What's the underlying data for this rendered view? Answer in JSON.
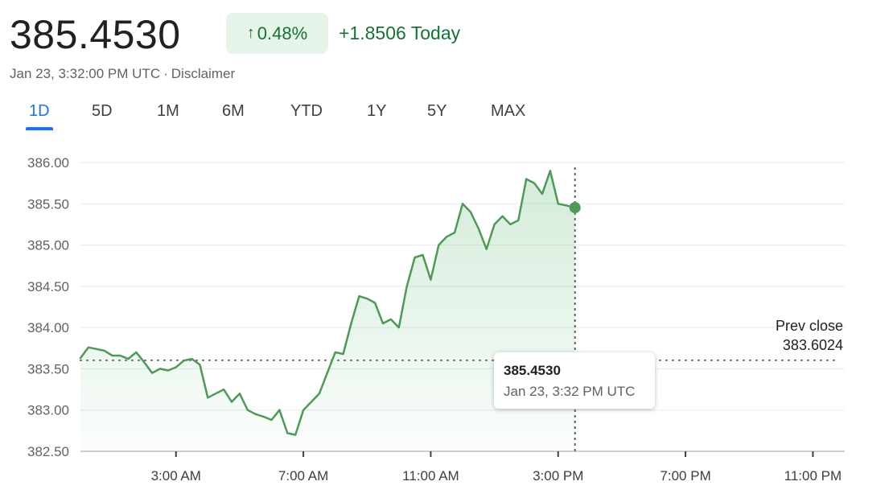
{
  "quote": {
    "price": "385.4530",
    "change_percent": "0.48%",
    "change_arrow": "↑",
    "change_today": "+1.8506 Today",
    "timestamp": "Jan 23, 3:32:00 PM UTC",
    "separator": "·",
    "disclaimer": "Disclaimer"
  },
  "tabs": [
    {
      "label": "1D",
      "active": true
    },
    {
      "label": "5D"
    },
    {
      "label": "1M"
    },
    {
      "label": "6M"
    },
    {
      "label": "YTD"
    },
    {
      "label": "1Y"
    },
    {
      "label": "5Y"
    },
    {
      "label": "MAX"
    }
  ],
  "tooltip": {
    "price": "385.4530",
    "time": "Jan 23, 3:32 PM UTC"
  },
  "prev_close": {
    "label": "Prev close",
    "value": "383.6024"
  },
  "colors": {
    "up": "#137333",
    "line": "#4d9a55",
    "badge_bg": "#e6f4ea",
    "active_tab": "#1a73e8"
  },
  "chart_data": {
    "type": "line",
    "title": "",
    "xlabel": "",
    "ylabel": "",
    "x_unit": "hours since 12:00 AM",
    "xlim": [
      0,
      24
    ],
    "ylim": [
      382.5,
      386.0
    ],
    "y_ticks": [
      "386.00",
      "385.50",
      "385.00",
      "384.50",
      "384.00",
      "383.50",
      "383.00",
      "382.50"
    ],
    "y_tick_values": [
      386.0,
      385.5,
      385.0,
      384.5,
      384.0,
      383.5,
      383.0,
      382.5
    ],
    "x_ticks": [
      "3:00 AM",
      "7:00 AM",
      "11:00 AM",
      "3:00 PM",
      "7:00 PM",
      "11:00 PM"
    ],
    "x_tick_values": [
      3,
      7,
      11,
      15,
      19,
      23
    ],
    "prev_close": 383.6024,
    "last_point": {
      "x": 15.53,
      "y": 385.453
    },
    "grid": true,
    "series": [
      {
        "x": [
          0,
          0.25,
          0.5,
          0.75,
          1.0,
          1.25,
          1.5,
          1.75,
          2.0,
          2.25,
          2.5,
          2.75,
          3.0,
          3.25,
          3.5,
          3.75,
          4.0,
          4.25,
          4.5,
          4.75,
          5.0,
          5.25,
          5.5,
          5.75,
          6.0,
          6.25,
          6.5,
          6.75,
          7.0,
          7.25,
          7.5,
          7.75,
          8.0,
          8.25,
          8.5,
          8.75,
          9.0,
          9.25,
          9.5,
          9.75,
          10.0,
          10.25,
          10.5,
          10.75,
          11.0,
          11.25,
          11.5,
          11.75,
          12.0,
          12.25,
          12.5,
          12.75,
          13.0,
          13.25,
          13.5,
          13.75,
          14.0,
          14.25,
          14.5,
          14.75,
          15.0,
          15.25,
          15.53
        ],
        "values": [
          383.63,
          383.76,
          383.74,
          383.72,
          383.66,
          383.66,
          383.62,
          383.7,
          383.58,
          383.45,
          383.5,
          383.48,
          383.52,
          383.6,
          383.62,
          383.55,
          383.15,
          383.2,
          383.25,
          383.1,
          383.2,
          383.0,
          382.95,
          382.92,
          382.88,
          383.0,
          382.72,
          382.7,
          383.0,
          383.1,
          383.2,
          383.45,
          383.7,
          383.68,
          384.05,
          384.38,
          384.35,
          384.3,
          384.05,
          384.1,
          384.0,
          384.5,
          384.85,
          384.88,
          384.58,
          385.0,
          385.1,
          385.15,
          385.5,
          385.4,
          385.2,
          384.95,
          385.25,
          385.35,
          385.25,
          385.3,
          385.8,
          385.75,
          385.62,
          385.9,
          385.5,
          385.48,
          385.453
        ]
      }
    ]
  }
}
